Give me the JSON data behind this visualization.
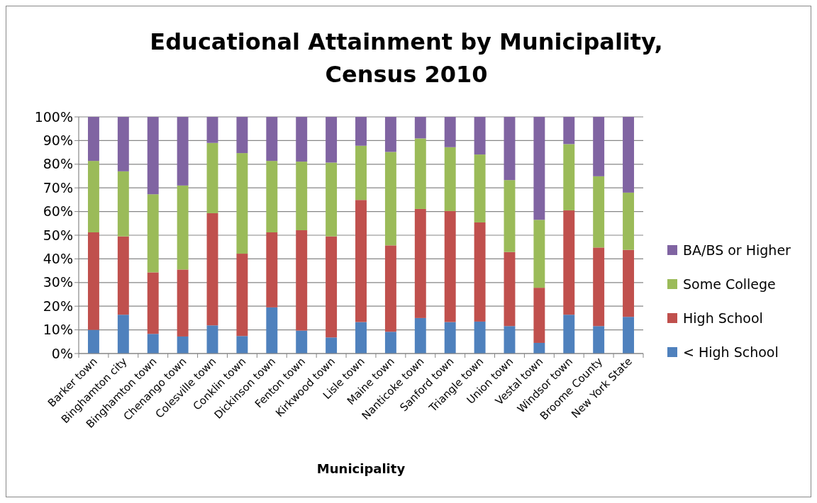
{
  "chart_data": {
    "type": "bar",
    "title": "Educational Attainment by Municipality, Census 2010",
    "xlabel": "Municipality",
    "stacked": true,
    "grid": "y",
    "legend": "right",
    "categories": [
      "Barker town",
      "Binghamton city",
      "Binghamton town",
      "Chenango town",
      "Colesville town",
      "Conklin town",
      "Dickinson town",
      "Fenton town",
      "Kirkwood town",
      "Lisle town",
      "Maine town",
      "Nanticoke town",
      "Sanford town",
      "Triangle town",
      "Union town",
      "Vestal town",
      "Windsor town",
      "Broome County",
      "New York State"
    ],
    "ylim": [
      0,
      100
    ],
    "yticks": [
      {
        "value": 0,
        "label": "0%"
      },
      {
        "value": 10,
        "label": "10%"
      },
      {
        "value": 20,
        "label": "20%"
      },
      {
        "value": 30,
        "label": "30%"
      },
      {
        "value": 40,
        "label": "40%"
      },
      {
        "value": 50,
        "label": "50%"
      },
      {
        "value": 60,
        "label": "60%"
      },
      {
        "value": 70,
        "label": "70%"
      },
      {
        "value": 80,
        "label": "80%"
      },
      {
        "value": 90,
        "label": "90%"
      },
      {
        "value": 100,
        "label": "100%"
      }
    ],
    "series": [
      {
        "name": "< High School",
        "color": "#4f81bd",
        "values": [
          10.0,
          16.4,
          8.3,
          7.2,
          11.9,
          7.4,
          19.5,
          9.7,
          6.8,
          13.3,
          9.2,
          15.0,
          13.3,
          13.5,
          11.6,
          4.5,
          16.4,
          11.6,
          15.5
        ]
      },
      {
        "name": "High School",
        "color": "#c0504d",
        "values": [
          41.2,
          33.1,
          26.0,
          28.3,
          47.4,
          34.8,
          31.7,
          42.4,
          42.7,
          51.6,
          36.5,
          46.1,
          46.9,
          41.9,
          31.3,
          23.3,
          44.1,
          33.2,
          28.3
        ]
      },
      {
        "name": "Some College",
        "color": "#9bbb59",
        "values": [
          30.2,
          27.5,
          33.0,
          35.5,
          29.7,
          42.5,
          30.2,
          29.0,
          31.2,
          22.9,
          39.5,
          29.8,
          27.0,
          28.7,
          30.4,
          28.7,
          28.0,
          30.1,
          24.2
        ]
      },
      {
        "name": "BA/BS or Higher",
        "color": "#8064a2",
        "values": [
          18.6,
          23.0,
          32.7,
          29.0,
          11.0,
          15.3,
          18.6,
          18.9,
          19.3,
          12.2,
          14.8,
          9.1,
          12.8,
          15.9,
          26.7,
          43.5,
          11.5,
          25.1,
          32.0
        ]
      }
    ]
  }
}
